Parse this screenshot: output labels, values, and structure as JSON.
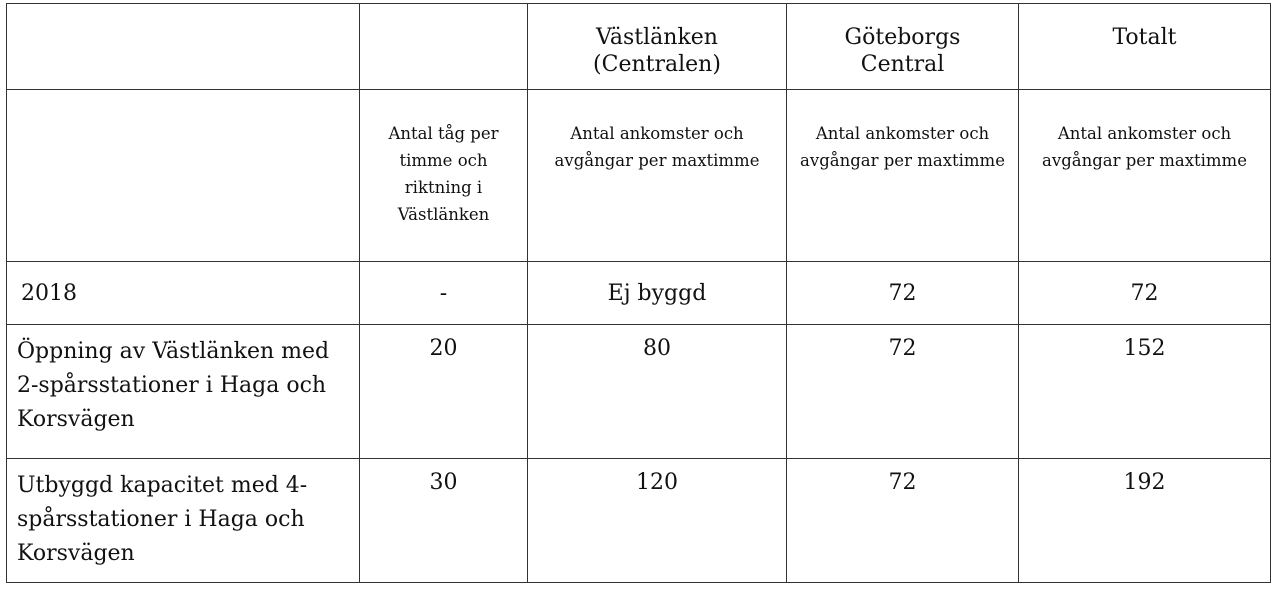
{
  "table": {
    "headers": [
      "",
      "",
      "Västlänken (Centralen)",
      "Göteborgs Central",
      "Totalt"
    ],
    "subheaders": [
      "",
      "Antal tåg per timme och riktning i Västlänken",
      "Antal ankomster och avgångar per maxtimme",
      "Antal ankomster och avgångar per maxtimme",
      "Antal ankomster och avgångar per maxtimme"
    ],
    "rows": [
      [
        "2018",
        "-",
        "Ej byggd",
        "72",
        "72"
      ],
      [
        "Öppning av Västlänken med 2-spårsstationer i Haga och Korsvägen",
        "20",
        "80",
        "72",
        "152"
      ],
      [
        "Utbyggd kapacitet med 4-spårsstationer i Haga och Korsvägen",
        "30",
        "120",
        "72",
        "192"
      ]
    ]
  }
}
